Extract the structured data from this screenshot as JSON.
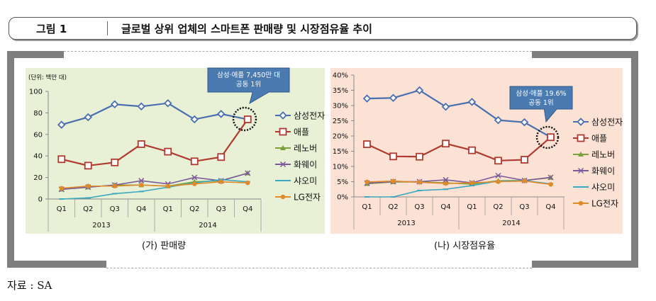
{
  "header": {
    "figure_label": "그림 1",
    "title": "글로벌 상위 업체의 스마트폰 판매량 및 시장점유율 추이"
  },
  "captions": {
    "left": "(가) 판매량",
    "right": "(나) 시장점유율"
  },
  "source": "자료 : SA",
  "colors": {
    "samsung": "#4a6fae",
    "apple": "#b03a30",
    "lenovo": "#7aa03a",
    "huawei": "#7a5a9a",
    "xiaomi": "#3aa8c0",
    "lg": "#e08a2a",
    "panel_a_bg": "#e8f0d6",
    "panel_b_bg": "#fbe2d4",
    "callout": "#4a7ab0"
  },
  "chart_data": [
    {
      "type": "line",
      "unit_label": "(단위: 백만 대)",
      "categories": [
        "Q1",
        "Q2",
        "Q3",
        "Q4",
        "Q1",
        "Q2",
        "Q3",
        "Q4"
      ],
      "year_groups": [
        {
          "label": "2013",
          "span": 4
        },
        {
          "label": "2014",
          "span": 4
        }
      ],
      "ylim": [
        0,
        100
      ],
      "yticks": [
        "0",
        "20",
        "40",
        "60",
        "80",
        "100"
      ],
      "ytick_values": [
        0,
        20,
        40,
        60,
        80,
        100
      ],
      "grid": false,
      "legend_position": "right",
      "series": [
        {
          "name": "삼성전자",
          "color": "samsung",
          "marker": "diamond",
          "values": [
            69,
            76,
            88,
            86,
            89,
            74,
            79,
            74
          ]
        },
        {
          "name": "애플",
          "color": "apple",
          "marker": "square",
          "values": [
            37,
            31,
            34,
            51,
            44,
            35,
            39,
            74
          ]
        },
        {
          "name": "레노버",
          "color": "lenovo",
          "marker": "triangle",
          "values": [
            9,
            11,
            13,
            13,
            12,
            16,
            17,
            24
          ]
        },
        {
          "name": "화웨이",
          "color": "huawei",
          "marker": "x",
          "values": [
            9,
            11,
            13,
            17,
            14,
            20,
            17,
            24
          ]
        },
        {
          "name": "샤오미",
          "color": "xiaomi",
          "marker": "dash",
          "values": [
            0,
            1,
            5,
            7,
            11,
            15,
            18,
            16
          ]
        },
        {
          "name": "LG전자",
          "color": "lg",
          "marker": "circle",
          "values": [
            10,
            12,
            12,
            13,
            12,
            14,
            16,
            15
          ]
        }
      ],
      "annotation": {
        "text_lines": [
          "삼성·애플 7,450만 대",
          "공동 1위"
        ]
      }
    },
    {
      "type": "line",
      "categories": [
        "Q1",
        "Q2",
        "Q3",
        "Q4",
        "Q1",
        "Q2",
        "Q3",
        "Q4"
      ],
      "year_groups": [
        {
          "label": "2013",
          "span": 4
        },
        {
          "label": "2014",
          "span": 4
        }
      ],
      "ylim": [
        0,
        40
      ],
      "yticks": [
        "0%",
        "5%",
        "10%",
        "15%",
        "20%",
        "25%",
        "30%",
        "35%",
        "40%"
      ],
      "ytick_values": [
        0,
        5,
        10,
        15,
        20,
        25,
        30,
        35,
        40
      ],
      "grid": false,
      "legend_position": "right",
      "series": [
        {
          "name": "삼성전자",
          "color": "samsung",
          "marker": "diamond",
          "values": [
            32.3,
            32.5,
            35,
            29.6,
            31.2,
            25.2,
            24.5,
            19.6
          ]
        },
        {
          "name": "애플",
          "color": "apple",
          "marker": "square",
          "values": [
            17.3,
            13.3,
            13.2,
            17.5,
            15.3,
            11.9,
            12.2,
            19.6
          ]
        },
        {
          "name": "레노버",
          "color": "lenovo",
          "marker": "triangle",
          "values": [
            4.3,
            4.9,
            4.9,
            4.6,
            4.2,
            5.3,
            5.4,
            6.3
          ]
        },
        {
          "name": "화웨이",
          "color": "huawei",
          "marker": "x",
          "values": [
            4.5,
            5,
            5,
            5.6,
            4.6,
            7,
            5.4,
            6.4
          ]
        },
        {
          "name": "샤오미",
          "color": "xiaomi",
          "marker": "dash",
          "values": [
            0,
            0,
            2.1,
            2.5,
            3.7,
            5.2,
            5.3,
            4.3
          ]
        },
        {
          "name": "LG전자",
          "color": "lg",
          "marker": "circle",
          "values": [
            4.9,
            5.2,
            4.8,
            4.4,
            4.6,
            5,
            5.2,
            4.1
          ]
        }
      ],
      "annotation": {
        "text_lines": [
          "삼성·애플 19.6%",
          "공동 1위"
        ]
      }
    }
  ]
}
